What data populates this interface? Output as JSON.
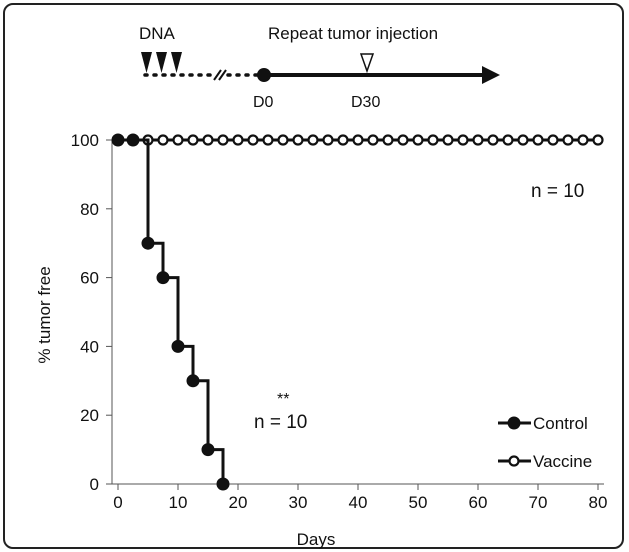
{
  "timeline": {
    "dna_label": "DNA",
    "repeat_label": "Repeat tumor injection",
    "d0_label": "D0",
    "d30_label": "D30"
  },
  "annotations": {
    "n_vaccine": "n = 10",
    "n_control": "n = 10",
    "significance": "**"
  },
  "chart_data": {
    "type": "line",
    "step": true,
    "xlabel": "Days",
    "ylabel": "% tumor free",
    "xlim": [
      -1,
      81
    ],
    "ylim": [
      0,
      100
    ],
    "xticks": [
      0,
      10,
      20,
      30,
      40,
      50,
      60,
      70,
      80
    ],
    "yticks": [
      0,
      20,
      40,
      60,
      80,
      100
    ],
    "legend_position": "bottom-right",
    "series": [
      {
        "name": "Control",
        "marker": "filled-circle",
        "color": "#111111",
        "x": [
          0,
          2.5,
          5,
          7.5,
          10,
          12.5,
          15,
          17.5
        ],
        "y": [
          100,
          100,
          70,
          60,
          40,
          30,
          10,
          0
        ]
      },
      {
        "name": "Vaccine",
        "marker": "open-circle",
        "color": "#111111",
        "x": [
          0,
          2.5,
          5,
          7.5,
          10,
          12.5,
          15,
          17.5,
          20,
          22.5,
          25,
          27.5,
          30,
          32.5,
          35,
          37.5,
          40,
          42.5,
          45,
          47.5,
          50,
          52.5,
          55,
          57.5,
          60,
          62.5,
          65,
          67.5,
          70,
          72.5,
          75,
          77.5,
          80
        ],
        "y": [
          100,
          100,
          100,
          100,
          100,
          100,
          100,
          100,
          100,
          100,
          100,
          100,
          100,
          100,
          100,
          100,
          100,
          100,
          100,
          100,
          100,
          100,
          100,
          100,
          100,
          100,
          100,
          100,
          100,
          100,
          100,
          100,
          100
        ]
      }
    ]
  }
}
